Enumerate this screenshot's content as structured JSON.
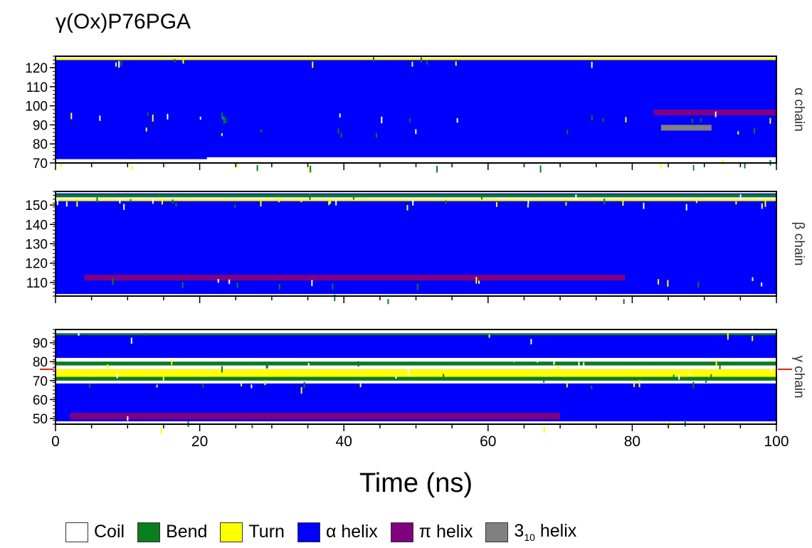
{
  "title": "γ(Ox)P76PGA",
  "colors": {
    "coil": "#ffffff",
    "bend": "#0a7d1e",
    "turn": "#ffff00",
    "alpha": "#0000ff",
    "pi": "#800080",
    "three10": "#808080",
    "marker": "#d62020"
  },
  "legend": [
    {
      "key": "coil",
      "label": "Coil"
    },
    {
      "key": "bend",
      "label": "Bend"
    },
    {
      "key": "turn",
      "label": "Turn"
    },
    {
      "key": "alpha",
      "label": "α helix"
    },
    {
      "key": "pi",
      "label": "π helix"
    },
    {
      "key": "three10",
      "label": "3",
      "sub": "10",
      "rest": " helix"
    }
  ],
  "chart_data": {
    "type": "heatmap",
    "xlabel": "Time (ns)",
    "xlim": [
      0,
      100
    ],
    "xticks": [
      0,
      20,
      40,
      60,
      80,
      100
    ],
    "panels": [
      {
        "name": "α chain",
        "ylim": [
          70,
          126
        ],
        "yticks": [
          70,
          80,
          90,
          100,
          110,
          120
        ],
        "residue_range": [
          72,
          125
        ],
        "background": "alpha",
        "bands": [
          {
            "type": "turn",
            "t": [
              0,
              100
            ],
            "res": [
              124,
              125
            ]
          },
          {
            "type": "coil",
            "t": [
              21,
              100
            ],
            "res": [
              70,
              73
            ]
          },
          {
            "type": "pi",
            "t": [
              83,
              100
            ],
            "res": [
              95,
              98
            ]
          },
          {
            "type": "three10",
            "t": [
              84,
              91
            ],
            "res": [
              87,
              90
            ]
          }
        ]
      },
      {
        "name": "β chain",
        "ylim": [
          103,
          157
        ],
        "yticks": [
          110,
          120,
          130,
          140,
          150
        ],
        "residue_range": [
          104,
          156
        ],
        "background": "alpha",
        "bands": [
          {
            "type": "coil",
            "t": [
              0,
              100
            ],
            "res": [
              152.5,
              154
            ]
          },
          {
            "type": "bend",
            "t": [
              0,
              100
            ],
            "res": [
              154,
              155.5
            ]
          },
          {
            "type": "turn",
            "t": [
              0,
              100
            ],
            "res": [
              152,
              153
            ]
          },
          {
            "type": "pi",
            "t": [
              4,
              79
            ],
            "res": [
              111,
              114
            ]
          },
          {
            "type": "coil",
            "t": [
              0,
              100
            ],
            "res": [
              103,
              104
            ]
          }
        ]
      },
      {
        "name": "γ chain",
        "ylim": [
          47,
          97
        ],
        "yticks": [
          50,
          60,
          70,
          80,
          90
        ],
        "residue_range": [
          48,
          95
        ],
        "marker_residue": 76,
        "background": "alpha",
        "bands": [
          {
            "type": "bend",
            "t": [
              0,
              100
            ],
            "res": [
              94,
              95
            ]
          },
          {
            "type": "coil",
            "t": [
              0,
              100
            ],
            "res": [
              80,
              82
            ]
          },
          {
            "type": "bend",
            "t": [
              0,
              100
            ],
            "res": [
              78,
              80
            ]
          },
          {
            "type": "coil",
            "t": [
              0,
              100
            ],
            "res": [
              76,
              78
            ]
          },
          {
            "type": "turn",
            "t": [
              0,
              100
            ],
            "res": [
              72,
              76
            ]
          },
          {
            "type": "bend",
            "t": [
              0,
              100
            ],
            "res": [
              70,
              72
            ]
          },
          {
            "type": "coil",
            "t": [
              0,
              100
            ],
            "res": [
              68.5,
              70
            ]
          },
          {
            "type": "pi",
            "t": [
              2,
              70
            ],
            "res": [
              49.5,
              53
            ]
          },
          {
            "type": "coil",
            "t": [
              0,
              100
            ],
            "res": [
              47,
              48.5
            ]
          }
        ]
      }
    ]
  }
}
